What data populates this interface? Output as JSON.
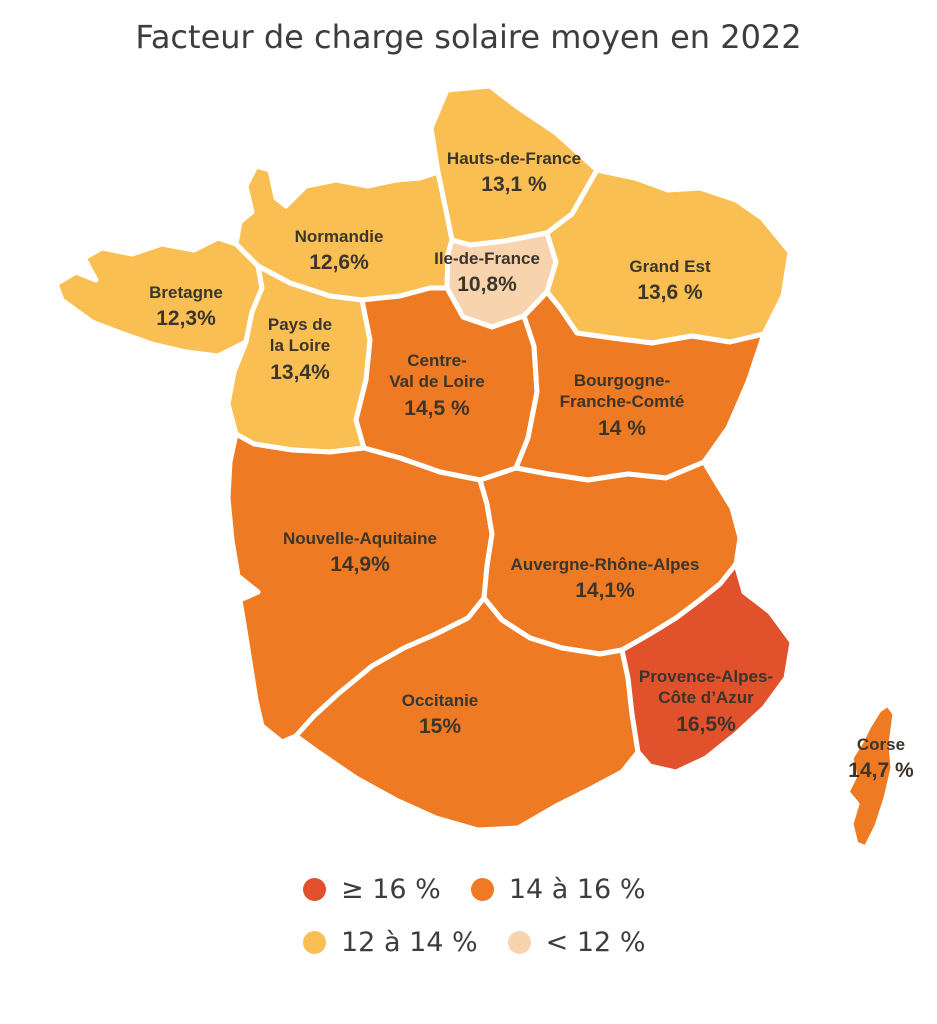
{
  "title": "Facteur de charge solaire moyen en 2022",
  "colors": {
    "gte-16": "#e0512c",
    "14-16": "#ee7b24",
    "12-14": "#f9bf53",
    "lt-12": "#f8d4ae"
  },
  "regions": [
    {
      "id": "hauts-de-france",
      "name": "Hauts-de-France",
      "value": "13,1 %",
      "bin": "12-14"
    },
    {
      "id": "normandie",
      "name": "Normandie",
      "value": "12,6%",
      "bin": "12-14"
    },
    {
      "id": "ile-de-france",
      "name": "Ile-de-France",
      "value": "10,8%",
      "bin": "lt-12"
    },
    {
      "id": "grand-est",
      "name": "Grand Est",
      "value": "13,6 %",
      "bin": "12-14"
    },
    {
      "id": "bretagne",
      "name": "Bretagne",
      "value": "12,3%",
      "bin": "12-14"
    },
    {
      "id": "pays-de-la-loire",
      "name": "Pays de\nla Loire",
      "value": "13,4%",
      "bin": "12-14"
    },
    {
      "id": "centre-val-de-loire",
      "name": "Centre-\nVal de Loire",
      "value": "14,5 %",
      "bin": "14-16"
    },
    {
      "id": "bourgogne-franche-comte",
      "name": "Bourgogne-\nFranche-Comté",
      "value": "14 %",
      "bin": "14-16"
    },
    {
      "id": "nouvelle-aquitaine",
      "name": "Nouvelle-Aquitaine",
      "value": "14,9%",
      "bin": "14-16"
    },
    {
      "id": "auvergne-rhone-alpes",
      "name": "Auvergne-Rhône-Alpes",
      "value": "14,1%",
      "bin": "14-16"
    },
    {
      "id": "occitanie",
      "name": "Occitanie",
      "value": "15%",
      "bin": "14-16"
    },
    {
      "id": "provence-alpes-cote-d-azur",
      "name": "Provence-Alpes-\nCôte d’Azur",
      "value": "16,5%",
      "bin": "gte-16"
    },
    {
      "id": "corse",
      "name": "Corse",
      "value": "14,7 %",
      "bin": "14-16"
    }
  ],
  "legend": [
    {
      "bin": "gte-16",
      "label": "≥ 16 %"
    },
    {
      "bin": "14-16",
      "label": "14 à 16 %"
    },
    {
      "bin": "12-14",
      "label": "12 à 14 %"
    },
    {
      "bin": "lt-12",
      "label": "< 12 %"
    }
  ],
  "chart_data": {
    "type": "choropleth",
    "title": "Facteur de charge solaire moyen en 2022",
    "unit": "%",
    "regions": [
      {
        "name": "Hauts-de-France",
        "value": 13.1
      },
      {
        "name": "Normandie",
        "value": 12.6
      },
      {
        "name": "Ile-de-France",
        "value": 10.8
      },
      {
        "name": "Grand Est",
        "value": 13.6
      },
      {
        "name": "Bretagne",
        "value": 12.3
      },
      {
        "name": "Pays de la Loire",
        "value": 13.4
      },
      {
        "name": "Centre-Val de Loire",
        "value": 14.5
      },
      {
        "name": "Bourgogne-Franche-Comté",
        "value": 14.0
      },
      {
        "name": "Nouvelle-Aquitaine",
        "value": 14.9
      },
      {
        "name": "Auvergne-Rhône-Alpes",
        "value": 14.1
      },
      {
        "name": "Occitanie",
        "value": 15.0
      },
      {
        "name": "Provence-Alpes-Côte d’Azur",
        "value": 16.5
      },
      {
        "name": "Corse",
        "value": 14.7
      }
    ],
    "bins": [
      {
        "label": "≥ 16 %",
        "color": "#e0512c"
      },
      {
        "label": "14 à 16 %",
        "color": "#ee7b24"
      },
      {
        "label": "12 à 14 %",
        "color": "#f9bf53"
      },
      {
        "label": "< 12 %",
        "color": "#f8d4ae"
      }
    ],
    "legend_position": "bottom"
  }
}
